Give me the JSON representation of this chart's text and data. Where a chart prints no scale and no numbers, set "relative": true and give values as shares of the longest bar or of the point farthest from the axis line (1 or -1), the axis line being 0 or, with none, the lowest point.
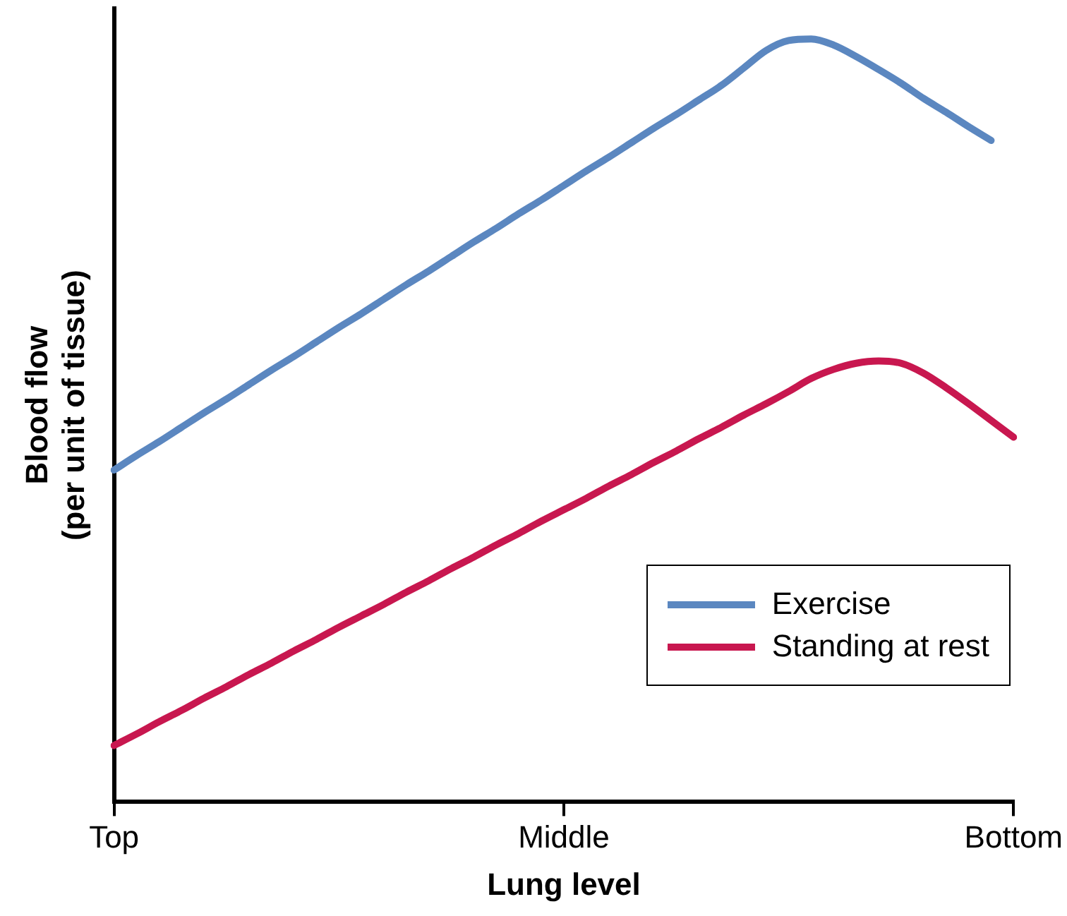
{
  "chart_data": {
    "type": "line",
    "relative": true,
    "xlabel": "Lung level",
    "ylabel": "Blood flow\n(per unit of tissue)",
    "categories": [
      "Top",
      null,
      null,
      null,
      null,
      null,
      null,
      null,
      null,
      null,
      null,
      null,
      null,
      null,
      null,
      null,
      null,
      null,
      null,
      null,
      "Middle",
      null,
      null,
      null,
      null,
      null,
      null,
      null,
      null,
      null,
      null,
      null,
      null,
      null,
      null,
      null,
      null,
      null,
      null,
      null,
      "Bottom"
    ],
    "series": [
      {
        "name": "Exercise",
        "color": "#5b87c0",
        "values": [
          0.435,
          0.454,
          0.472,
          0.491,
          0.51,
          0.528,
          0.547,
          0.566,
          0.584,
          0.603,
          0.622,
          0.64,
          0.659,
          0.678,
          0.696,
          0.715,
          0.734,
          0.752,
          0.771,
          0.789,
          0.808,
          0.827,
          0.845,
          0.864,
          0.883,
          0.901,
          0.92,
          0.939,
          0.962,
          0.985,
          0.998,
          1,
          0.992,
          0.977,
          0.96,
          0.942,
          0.922,
          0.904,
          0.885,
          0.867,
          null
        ]
      },
      {
        "name": "Standing at rest",
        "color": "#c8174f",
        "values": [
          0.074,
          0.089,
          0.105,
          0.12,
          0.136,
          0.151,
          0.167,
          0.182,
          0.198,
          0.213,
          0.229,
          0.244,
          0.259,
          0.275,
          0.29,
          0.306,
          0.321,
          0.337,
          0.352,
          0.368,
          0.383,
          0.398,
          0.414,
          0.429,
          0.445,
          0.46,
          0.476,
          0.491,
          0.507,
          0.522,
          0.538,
          0.555,
          0.567,
          0.575,
          0.578,
          0.575,
          0.562,
          0.543,
          0.522,
          0.5,
          0.478
        ]
      }
    ],
    "grid": false,
    "legend": "bottom right",
    "marker": "none",
    "line_style": "solid"
  }
}
